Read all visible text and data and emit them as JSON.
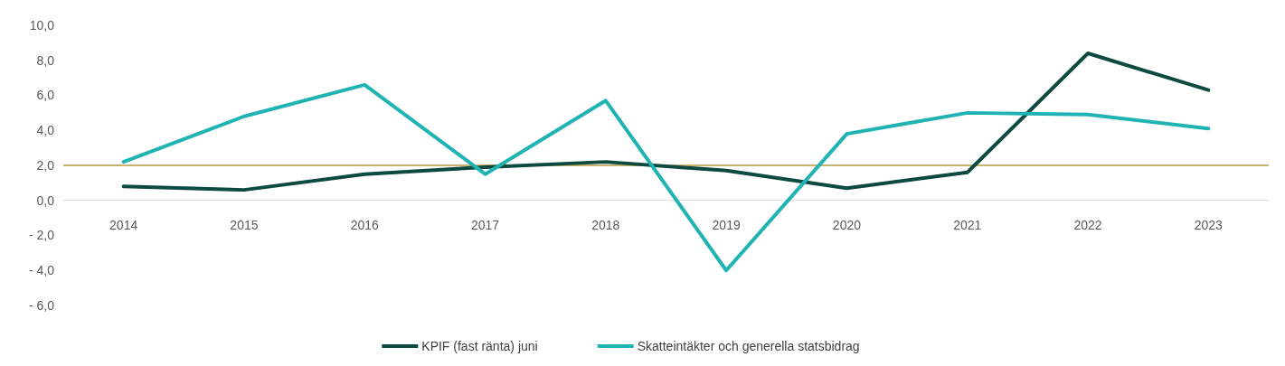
{
  "chart_data": {
    "type": "line",
    "categories": [
      "2014",
      "2015",
      "2016",
      "2017",
      "2018",
      "2019",
      "2020",
      "2021",
      "2022",
      "2023"
    ],
    "series": [
      {
        "name": "KPIF (fast ränta) juni",
        "color": "#0d4a40",
        "values": [
          0.8,
          0.6,
          1.5,
          1.9,
          2.2,
          1.7,
          0.7,
          1.6,
          8.4,
          6.3
        ]
      },
      {
        "name": "Skatteintäkter och generella statsbidrag",
        "color": "#1fb3b3",
        "values": [
          2.2,
          4.8,
          6.6,
          1.5,
          5.7,
          -4.0,
          3.8,
          5.0,
          4.9,
          4.1
        ]
      }
    ],
    "ylim": [
      -6,
      10
    ],
    "yticks": [
      {
        "value": -6,
        "label": "- 6,0"
      },
      {
        "value": -4,
        "label": "- 4,0"
      },
      {
        "value": -2,
        "label": "- 2,0"
      },
      {
        "value": 0,
        "label": "0,0"
      },
      {
        "value": 2,
        "label": "2,0"
      },
      {
        "value": 4,
        "label": "4,0"
      },
      {
        "value": 6,
        "label": "6,0"
      },
      {
        "value": 8,
        "label": "8,0"
      },
      {
        "value": 10,
        "label": "10,0"
      }
    ],
    "ref_lines": [
      {
        "axis": "y",
        "value": 2,
        "color": "#b89a3a"
      }
    ],
    "legend": "bottom",
    "grid": false,
    "line_style": "solid",
    "marker": "none"
  }
}
